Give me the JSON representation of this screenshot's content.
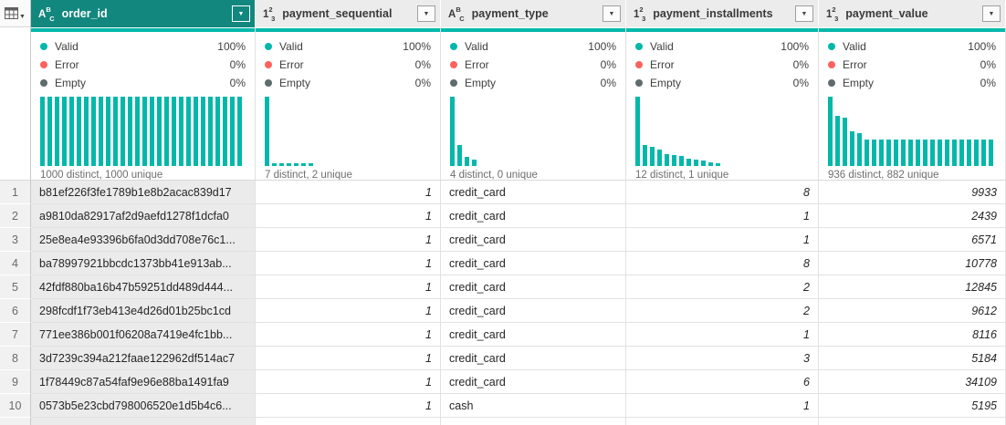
{
  "app": "power-query-data-preview",
  "icons": {
    "dropdown_caret": "▼",
    "corner_caret": "▼",
    "text_type_icon": {
      "main": "A",
      "sup": "B",
      "sub": "C"
    },
    "number_type_icon": {
      "main": "1",
      "sup": "2",
      "sub": "3"
    }
  },
  "colors": {
    "selected_header_teal": "#12877D",
    "quality_teal": "#01B8AA",
    "error_red": "#FD625E",
    "empty_gray": "#5F6B6D",
    "header_gray": "#ECECEC",
    "selected_column_cell": "#EBEBEB"
  },
  "quality_labels": {
    "valid": "Valid",
    "error": "Error",
    "empty": "Empty"
  },
  "columns": [
    {
      "name": "order_id",
      "type": "text",
      "selected": true,
      "quality": {
        "valid": "100%",
        "error": "0%",
        "empty": "0%"
      },
      "distinct_label": "1000 distinct, 1000 unique",
      "histogram": [
        100,
        100,
        100,
        100,
        100,
        100,
        100,
        100,
        100,
        100,
        100,
        100,
        100,
        100,
        100,
        100,
        100,
        100,
        100,
        100,
        100,
        100,
        100,
        100,
        100,
        100,
        100,
        100
      ],
      "numeric": false
    },
    {
      "name": "payment_sequential",
      "type": "number",
      "selected": false,
      "quality": {
        "valid": "100%",
        "error": "0%",
        "empty": "0%"
      },
      "distinct_label": "7 distinct, 2 unique",
      "histogram": [
        100,
        4,
        4,
        4,
        4,
        4,
        4
      ],
      "numeric": true
    },
    {
      "name": "payment_type",
      "type": "text",
      "selected": false,
      "quality": {
        "valid": "100%",
        "error": "0%",
        "empty": "0%"
      },
      "distinct_label": "4 distinct, 0 unique",
      "histogram": [
        100,
        30,
        13,
        9
      ],
      "numeric": false
    },
    {
      "name": "payment_installments",
      "type": "number",
      "selected": false,
      "quality": {
        "valid": "100%",
        "error": "0%",
        "empty": "0%"
      },
      "distinct_label": "12 distinct, 1 unique",
      "histogram": [
        100,
        30,
        27,
        24,
        17,
        16,
        15,
        11,
        9,
        8,
        5,
        4
      ],
      "numeric": true
    },
    {
      "name": "payment_value",
      "type": "number",
      "selected": false,
      "quality": {
        "valid": "100%",
        "error": "0%",
        "empty": "0%"
      },
      "distinct_label": "936 distinct, 882 unique",
      "histogram": [
        100,
        72,
        70,
        50,
        48,
        38,
        38,
        38,
        38,
        38,
        38,
        38,
        38,
        38,
        38,
        38,
        38,
        38,
        38,
        38,
        38,
        38,
        38
      ],
      "numeric": true
    }
  ],
  "rows": [
    {
      "num": "1",
      "order_id": "b81ef226f3fe1789b1e8b2acac839d17",
      "payment_sequential": "1",
      "payment_type": "credit_card",
      "payment_installments": "8",
      "payment_value": "9933"
    },
    {
      "num": "2",
      "order_id": "a9810da82917af2d9aefd1278f1dcfa0",
      "payment_sequential": "1",
      "payment_type": "credit_card",
      "payment_installments": "1",
      "payment_value": "2439"
    },
    {
      "num": "3",
      "order_id": "25e8ea4e93396b6fa0d3dd708e76c1...",
      "payment_sequential": "1",
      "payment_type": "credit_card",
      "payment_installments": "1",
      "payment_value": "6571"
    },
    {
      "num": "4",
      "order_id": "ba78997921bbcdc1373bb41e913ab...",
      "payment_sequential": "1",
      "payment_type": "credit_card",
      "payment_installments": "8",
      "payment_value": "10778"
    },
    {
      "num": "5",
      "order_id": "42fdf880ba16b47b59251dd489d444...",
      "payment_sequential": "1",
      "payment_type": "credit_card",
      "payment_installments": "2",
      "payment_value": "12845"
    },
    {
      "num": "6",
      "order_id": "298fcdf1f73eb413e4d26d01b25bc1cd",
      "payment_sequential": "1",
      "payment_type": "credit_card",
      "payment_installments": "2",
      "payment_value": "9612"
    },
    {
      "num": "7",
      "order_id": "771ee386b001f06208a7419e4fc1bb...",
      "payment_sequential": "1",
      "payment_type": "credit_card",
      "payment_installments": "1",
      "payment_value": "8116"
    },
    {
      "num": "8",
      "order_id": "3d7239c394a212faae122962df514ac7",
      "payment_sequential": "1",
      "payment_type": "credit_card",
      "payment_installments": "3",
      "payment_value": "5184"
    },
    {
      "num": "9",
      "order_id": "1f78449c87a54faf9e96e88ba1491fa9",
      "payment_sequential": "1",
      "payment_type": "credit_card",
      "payment_installments": "6",
      "payment_value": "34109"
    },
    {
      "num": "10",
      "order_id": "0573b5e23cbd798006520e1d5b4c6...",
      "payment_sequential": "1",
      "payment_type": "cash",
      "payment_installments": "1",
      "payment_value": "5195"
    }
  ]
}
